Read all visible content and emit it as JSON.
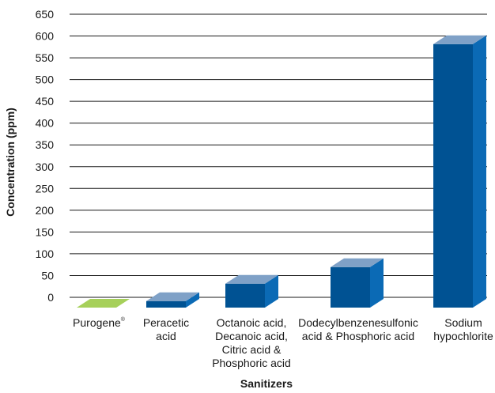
{
  "chart_data": {
    "type": "bar",
    "title": "",
    "xlabel": "Sanitizers",
    "ylabel": "Concentration (ppm)",
    "ylim": [
      0,
      650
    ],
    "y_ticks": [
      0,
      50,
      100,
      150,
      200,
      250,
      300,
      350,
      400,
      450,
      500,
      550,
      600,
      650
    ],
    "grid": true,
    "style": "3d",
    "categories": [
      {
        "lines": [
          "Purogene"
        ],
        "superscript": "®"
      },
      {
        "lines": [
          "Peracetic",
          "acid"
        ]
      },
      {
        "lines": [
          "Octanoic acid,",
          "Decanoic acid,",
          "Citric acid &",
          "Phosphoric acid"
        ]
      },
      {
        "lines": [
          "Dodecylbenzenesulfonic",
          "acid & Phosphoric acid"
        ]
      },
      {
        "lines": [
          "Sodium",
          "hypochlorite"
        ]
      }
    ],
    "values": [
      0,
      15,
      55,
      93,
      605
    ],
    "colors": [
      "#7cb82f",
      "#005293",
      "#005293",
      "#005293",
      "#005293"
    ],
    "top_colors": [
      "#a6d05a",
      "#7fa1c7",
      "#7fa1c7",
      "#7fa1c7",
      "#7fa1c7"
    ],
    "side_colors": [
      "#5e9a1d",
      "#0b6ab5",
      "#0b6ab5",
      "#0b6ab5",
      "#0b6ab5"
    ]
  }
}
